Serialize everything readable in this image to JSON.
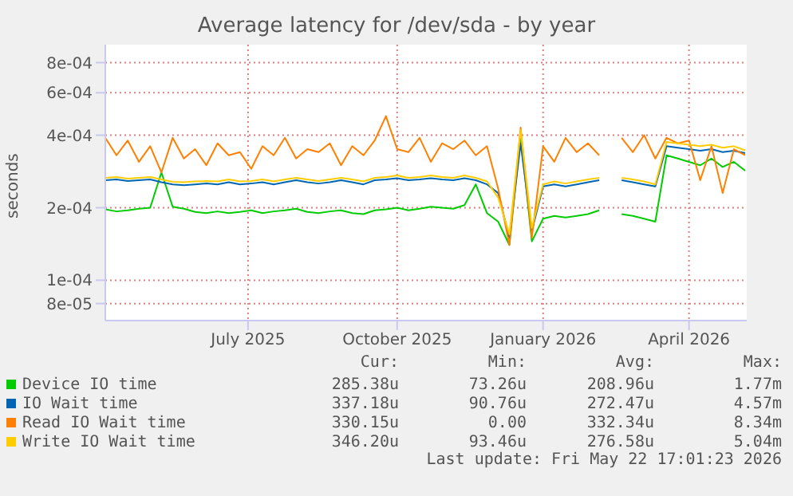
{
  "chart_data": {
    "type": "line",
    "title": "Average latency for /dev/sda - by year",
    "ylabel": "seconds",
    "x": [
      "2025-04-17",
      "2025-04-24",
      "2025-05-01",
      "2025-05-08",
      "2025-05-15",
      "2025-05-22",
      "2025-05-29",
      "2025-06-05",
      "2025-06-12",
      "2025-06-19",
      "2025-06-26",
      "2025-07-03",
      "2025-07-10",
      "2025-07-17",
      "2025-07-24",
      "2025-07-31",
      "2025-08-07",
      "2025-08-14",
      "2025-08-21",
      "2025-08-28",
      "2025-09-04",
      "2025-09-11",
      "2025-09-18",
      "2025-09-25",
      "2025-10-02",
      "2025-10-09",
      "2025-10-16",
      "2025-10-23",
      "2025-10-30",
      "2025-11-06",
      "2025-11-13",
      "2025-11-20",
      "2025-11-27",
      "2025-12-04",
      "2025-12-11",
      "2025-12-18",
      "2025-12-25",
      "2026-01-01",
      "2026-01-08",
      "2026-01-15",
      "2026-01-22",
      "2026-01-29",
      "2026-02-05",
      "2026-02-12",
      "2026-02-19",
      "2026-02-26",
      "2026-03-05",
      "2026-03-12",
      "2026-03-19",
      "2026-03-26",
      "2026-04-02",
      "2026-04-09",
      "2026-04-16",
      "2026-04-23",
      "2026-04-30",
      "2026-05-07",
      "2026-05-14",
      "2026-05-21"
    ],
    "series": [
      {
        "name": "Device IO time",
        "color": "#00cc00",
        "values": [
          0.000197,
          0.000193,
          0.000195,
          0.000198,
          0.0002,
          0.00028,
          0.000202,
          0.000198,
          0.000192,
          0.00019,
          0.000193,
          0.00019,
          0.000192,
          0.000195,
          0.00019,
          0.000193,
          0.000195,
          0.000198,
          0.000192,
          0.00019,
          0.000193,
          0.000195,
          0.00019,
          0.000188,
          0.000195,
          0.000197,
          0.0002,
          0.000195,
          0.000198,
          0.000202,
          0.0002,
          0.000198,
          0.000205,
          0.00025,
          0.00019,
          0.000175,
          0.00014,
          0.0004,
          0.000145,
          0.00018,
          0.000185,
          0.000182,
          0.000185,
          0.000188,
          0.000195,
          null,
          0.000188,
          0.000185,
          0.00018,
          0.000175,
          0.00033,
          0.00032,
          0.00031,
          0.0003,
          0.00032,
          0.000295,
          0.00031,
          0.000285
        ]
      },
      {
        "name": "IO Wait time",
        "color": "#0066b3",
        "values": [
          0.00026,
          0.000262,
          0.000258,
          0.00026,
          0.000262,
          0.000255,
          0.00025,
          0.000248,
          0.00025,
          0.000252,
          0.00025,
          0.000255,
          0.00025,
          0.000252,
          0.000255,
          0.00025,
          0.000255,
          0.00026,
          0.000255,
          0.000252,
          0.000255,
          0.00026,
          0.000255,
          0.00025,
          0.00026,
          0.000262,
          0.000265,
          0.00026,
          0.000262,
          0.000265,
          0.000262,
          0.00026,
          0.000265,
          0.00026,
          0.00025,
          0.00023,
          0.00015,
          0.00037,
          0.00016,
          0.000245,
          0.00025,
          0.000245,
          0.00025,
          0.000255,
          0.00026,
          null,
          0.00026,
          0.000255,
          0.00025,
          0.000245,
          0.00036,
          0.000355,
          0.00035,
          0.000345,
          0.00035,
          0.00034,
          0.000345,
          0.000337
        ]
      },
      {
        "name": "Read IO Wait time",
        "color": "#ff8000",
        "values": [
          0.00039,
          0.00033,
          0.00038,
          0.00031,
          0.00036,
          0.00028,
          0.00039,
          0.00032,
          0.00035,
          0.0003,
          0.00037,
          0.00033,
          0.00034,
          0.00029,
          0.00036,
          0.00033,
          0.00039,
          0.00032,
          0.00035,
          0.00034,
          0.00037,
          0.0003,
          0.00036,
          0.00033,
          0.00038,
          0.00048,
          0.00035,
          0.00034,
          0.00039,
          0.00031,
          0.00037,
          0.00035,
          0.00038,
          0.00033,
          0.00036,
          0.00024,
          0.00014,
          0.00043,
          0.00015,
          0.00036,
          0.00031,
          0.00039,
          0.00034,
          0.00037,
          0.00033,
          null,
          0.00039,
          0.00034,
          0.0004,
          0.00032,
          0.00039,
          0.00037,
          0.00038,
          0.00026,
          0.00036,
          0.00023,
          0.00035,
          0.00033
        ]
      },
      {
        "name": "Write IO Wait time",
        "color": "#ffcc00",
        "values": [
          0.000266,
          0.000268,
          0.000264,
          0.000266,
          0.000268,
          0.000262,
          0.000256,
          0.000255,
          0.000257,
          0.000258,
          0.000257,
          0.000262,
          0.000257,
          0.000258,
          0.000262,
          0.000257,
          0.000262,
          0.000266,
          0.000262,
          0.000258,
          0.000262,
          0.000266,
          0.000262,
          0.000257,
          0.000266,
          0.000268,
          0.000272,
          0.000266,
          0.000268,
          0.000272,
          0.000268,
          0.000266,
          0.000272,
          0.000266,
          0.000257,
          0.00022,
          0.000155,
          0.00042,
          0.000165,
          0.00025,
          0.000257,
          0.000252,
          0.000257,
          0.000262,
          0.000266,
          null,
          0.000266,
          0.000262,
          0.000257,
          0.00025,
          0.000375,
          0.00037,
          0.000365,
          0.00036,
          0.000365,
          0.000355,
          0.00036,
          0.000346
        ]
      }
    ],
    "xlim": [
      "2025-04-17",
      "2026-05-22"
    ],
    "xticks": [
      {
        "value": "2025-07-15",
        "label": "July 2025"
      },
      {
        "value": "2025-10-16",
        "label": "October 2025"
      },
      {
        "value": "2026-01-15",
        "label": "January 2026"
      },
      {
        "value": "2026-04-16",
        "label": "April 2026"
      }
    ],
    "ylim": [
      6.8e-05,
      0.00095
    ],
    "log": "y",
    "yticks": [
      {
        "value": 8e-05,
        "label": "8e-05"
      },
      {
        "value": 0.0001,
        "label": "1e-04"
      },
      {
        "value": 0.0002,
        "label": "2e-04"
      },
      {
        "value": 0.0004,
        "label": "4e-04"
      },
      {
        "value": 0.0006,
        "label": "6e-04"
      },
      {
        "value": 0.0008,
        "label": "8e-04"
      }
    ],
    "grid": true,
    "legend": "bottom",
    "marker": "none",
    "line_style": "solid",
    "annotations": [
      "Cur:",
      "Min:",
      "Avg:",
      "Max:",
      "285.38u",
      "73.26u",
      "208.96u",
      "1.77m",
      "337.18u",
      "90.76u",
      "272.47u",
      "4.57m",
      "330.15u",
      "0.00",
      "332.34u",
      "8.34m",
      "346.20u",
      "93.46u",
      "276.58u",
      "5.04m",
      "Last update: Fri May 22 17:01:23 2026"
    ]
  }
}
